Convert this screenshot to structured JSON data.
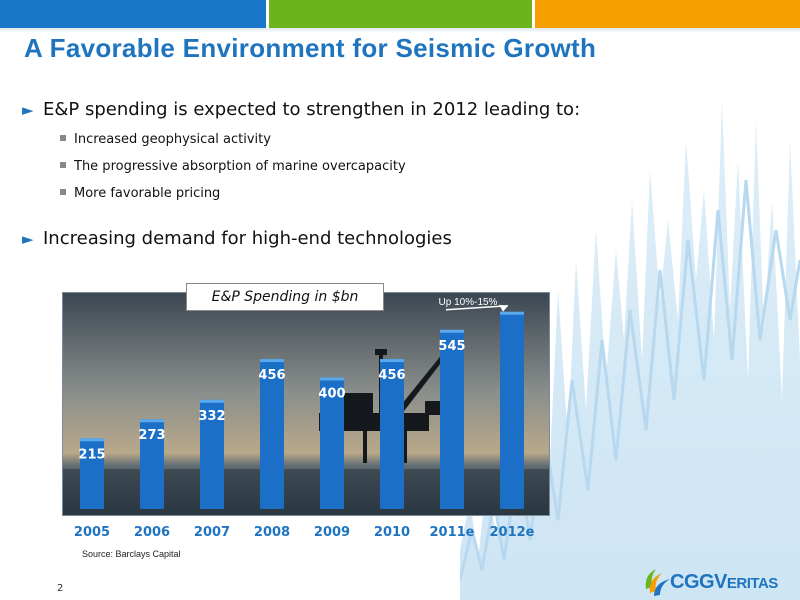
{
  "slide": {
    "title": "A Favorable Environment for Seismic Growth",
    "bullets": [
      {
        "text": "E&P spending is expected to strengthen in 2012 leading to:",
        "sub": [
          "Increased geophysical activity",
          "The progressive absorption of marine overcapacity",
          "More favorable pricing"
        ]
      },
      {
        "text": "Increasing demand for high-end technologies"
      }
    ],
    "source": "Source: Barclays Capital",
    "page_number": "2",
    "logo": {
      "brand_main": "CGGV",
      "brand_rest": "ERITAS"
    }
  },
  "colors": {
    "blue": "#1f74bf",
    "green": "#6cb41c",
    "orange": "#f5a000",
    "bar": "#1b6fc6"
  },
  "chart_data": {
    "type": "bar",
    "title": "E&P Spending in $bn",
    "categories": [
      "2005",
      "2006",
      "2007",
      "2008",
      "2009",
      "2010",
      "2011e",
      "2012e"
    ],
    "values": [
      215,
      273,
      332,
      456,
      400,
      456,
      545,
      600
    ],
    "labels": [
      "215",
      "273",
      "332",
      "456",
      "400",
      "456",
      "545",
      ""
    ],
    "annotation": "Up 10%-15%",
    "ylim": [
      0,
      660
    ]
  }
}
